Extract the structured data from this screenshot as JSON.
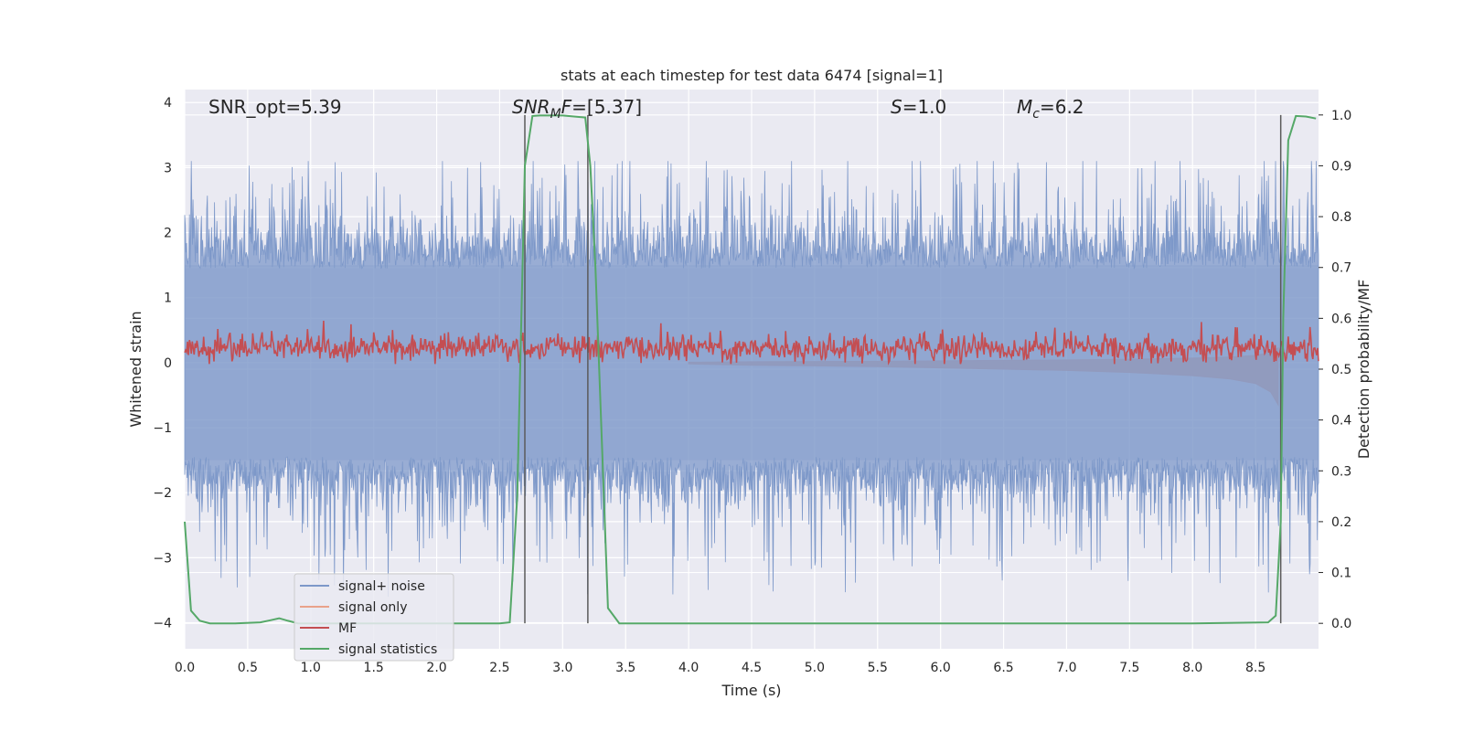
{
  "chart_data": {
    "type": "line",
    "title": "stats at each timestep for test data 6474 [signal=1]",
    "xlabel": "Time (s)",
    "ylabel": "Whitened strain",
    "y2label": "Detection probability/MF",
    "xlim": [
      0.0,
      9.0
    ],
    "ylim": [
      -4.4,
      4.2
    ],
    "y2lim": [
      -0.05,
      1.05
    ],
    "xticks": [
      "0.0",
      "0.5",
      "1.0",
      "1.5",
      "2.0",
      "2.5",
      "3.0",
      "3.5",
      "4.0",
      "4.5",
      "5.0",
      "5.5",
      "6.0",
      "6.5",
      "7.0",
      "7.5",
      "8.0",
      "8.5"
    ],
    "yticks": [
      "4",
      "3",
      "2",
      "1",
      "0",
      "−1",
      "−2",
      "−3",
      "−4"
    ],
    "y2ticks": [
      "1.0",
      "0.9",
      "0.8",
      "0.7",
      "0.6",
      "0.5",
      "0.4",
      "0.3",
      "0.2",
      "0.1",
      "0.0"
    ],
    "grid": true,
    "annotations": {
      "snr_opt": "SNR_opt=5.39",
      "snr_mf_main": "SNR",
      "snr_mf_sub": "M",
      "snr_mf_mid": "F",
      "snr_mf_val": "=[5.37]",
      "s_sym": "S",
      "s_val": "=1.0",
      "mc_main": "M",
      "mc_sub": "c",
      "mc_val": "=6.2"
    },
    "legend": {
      "position": "lower-left",
      "entries": [
        "signal+ noise",
        "signal only",
        "MF",
        "signal statistics"
      ]
    },
    "colors": {
      "noise": "#7d98c9",
      "signal_only": "#e9a28a",
      "mf": "#c44e52",
      "stats": "#55a868",
      "vline": "#5a5a5a",
      "background": "#eaeaf2",
      "grid": "#ffffff"
    },
    "vertical_lines_x": [
      2.7,
      3.2,
      8.7
    ],
    "signal_statistics": {
      "x": [
        0.0,
        0.05,
        0.12,
        0.2,
        0.4,
        0.6,
        0.68,
        0.75,
        0.82,
        0.9,
        1.2,
        1.5,
        2.0,
        2.5,
        2.58,
        2.64,
        2.7,
        2.76,
        2.82,
        3.0,
        3.18,
        3.22,
        3.26,
        3.32,
        3.36,
        3.45,
        4.0,
        5.0,
        6.0,
        7.0,
        8.0,
        8.6,
        8.66,
        8.7,
        8.72,
        8.76,
        8.82,
        8.9,
        8.98
      ],
      "y": [
        0.2,
        0.025,
        0.005,
        0.0,
        0.0,
        0.002,
        0.006,
        0.01,
        0.005,
        0.0,
        0.0,
        0.0,
        0.0,
        0.0,
        0.002,
        0.25,
        0.9,
        0.998,
        0.999,
        0.999,
        0.995,
        0.9,
        0.7,
        0.3,
        0.03,
        0.0,
        0.0,
        0.0,
        0.0,
        0.0,
        0.0,
        0.002,
        0.015,
        0.2,
        0.6,
        0.95,
        0.998,
        0.997,
        0.993
      ]
    },
    "signal_only_envelope": {
      "x": [
        4.0,
        4.5,
        5.0,
        5.5,
        6.0,
        6.5,
        7.0,
        7.5,
        8.0,
        8.3,
        8.5,
        8.62,
        8.68
      ],
      "amplitude": [
        0.02,
        0.04,
        0.05,
        0.06,
        0.08,
        0.1,
        0.12,
        0.15,
        0.2,
        0.25,
        0.32,
        0.45,
        0.65
      ]
    },
    "noise_band": {
      "typical_range": [
        -1.5,
        1.5
      ],
      "peak_range": [
        -3.6,
        3.1
      ]
    },
    "mf_band": {
      "center": 0.22,
      "half_width": 0.18,
      "peak": 0.78
    }
  }
}
